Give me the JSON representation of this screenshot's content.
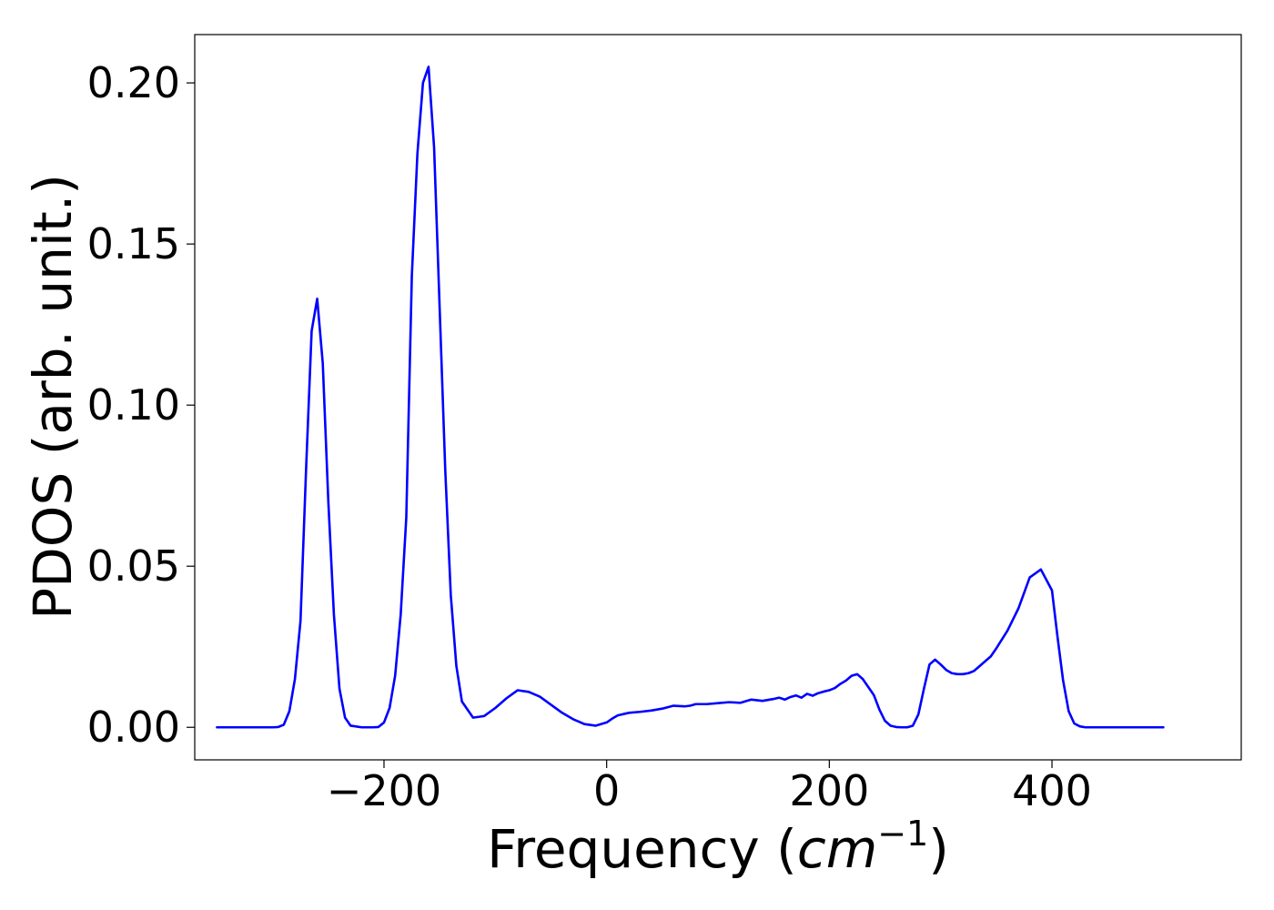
{
  "chart_data": {
    "type": "line",
    "title": "",
    "xlabel_text": "Frequency (",
    "xlabel_math": "cm",
    "xlabel_exponent": "−1",
    "xlabel_close": ")",
    "ylabel": "PDOS (arb. unit.)",
    "xlim": [
      -370,
      570
    ],
    "ylim": [
      -0.0101,
      0.215
    ],
    "xticks": [
      -200,
      0,
      200,
      400
    ],
    "xtick_labels": [
      "−200",
      "0",
      "200",
      "400"
    ],
    "yticks": [
      0.0,
      0.05,
      0.1,
      0.15,
      0.2
    ],
    "ytick_labels": [
      "0.00",
      "0.05",
      "0.10",
      "0.15",
      "0.20"
    ],
    "grid": false,
    "line_color": "#0000ff",
    "series": [
      {
        "x": [
          -350,
          -300,
          -295,
          -290,
          -285,
          -280,
          -275,
          -270,
          -265,
          -260,
          -255,
          -250,
          -245,
          -240,
          -235,
          -230,
          -220,
          -210,
          -205,
          -200,
          -195,
          -190,
          -185,
          -180,
          -175,
          -170,
          -165,
          -160,
          -155,
          -150,
          -145,
          -140,
          -135,
          -130,
          -120,
          -110,
          -100,
          -90,
          -80,
          -70,
          -60,
          -50,
          -40,
          -30,
          -20,
          -10,
          0,
          5,
          10,
          20,
          30,
          40,
          50,
          60,
          70,
          75,
          80,
          90,
          100,
          110,
          120,
          125,
          130,
          140,
          150,
          155,
          160,
          165,
          170,
          175,
          180,
          185,
          190,
          195,
          200,
          205,
          210,
          215,
          220,
          225,
          230,
          240,
          245,
          250,
          255,
          260,
          265,
          270,
          275,
          280,
          285,
          290,
          295,
          300,
          305,
          310,
          315,
          320,
          325,
          330,
          335,
          340,
          345,
          350,
          360,
          370,
          380,
          390,
          400,
          405,
          410,
          415,
          420,
          425,
          430,
          435,
          440,
          445,
          450,
          460,
          480,
          500
        ],
        "y": [
          0.0,
          0.0,
          0.0001,
          0.0008,
          0.005,
          0.015,
          0.033,
          0.08,
          0.123,
          0.133,
          0.113,
          0.07,
          0.035,
          0.012,
          0.003,
          0.0005,
          0.0,
          0.0,
          0.0001,
          0.0015,
          0.006,
          0.016,
          0.035,
          0.065,
          0.14,
          0.178,
          0.2,
          0.205,
          0.18,
          0.13,
          0.08,
          0.041,
          0.019,
          0.008,
          0.003,
          0.0035,
          0.006,
          0.009,
          0.0115,
          0.011,
          0.0095,
          0.007,
          0.0045,
          0.0025,
          0.001,
          0.0005,
          0.0015,
          0.0027,
          0.0037,
          0.0045,
          0.0048,
          0.0052,
          0.0058,
          0.0067,
          0.0065,
          0.0067,
          0.0072,
          0.0072,
          0.0075,
          0.0078,
          0.0076,
          0.0081,
          0.0086,
          0.0082,
          0.0088,
          0.0092,
          0.0086,
          0.0094,
          0.0099,
          0.0092,
          0.0104,
          0.0098,
          0.0106,
          0.0111,
          0.0115,
          0.0122,
          0.0135,
          0.0145,
          0.016,
          0.0165,
          0.015,
          0.01,
          0.0055,
          0.002,
          0.0005,
          0.0001,
          0.0,
          0.0,
          0.0005,
          0.004,
          0.012,
          0.0195,
          0.021,
          0.0195,
          0.0178,
          0.0168,
          0.0165,
          0.0165,
          0.0168,
          0.0175,
          0.019,
          0.0205,
          0.022,
          0.0245,
          0.03,
          0.037,
          0.0465,
          0.049,
          0.0425,
          0.028,
          0.0145,
          0.005,
          0.0012,
          0.0003,
          0.0,
          0.0,
          0.0,
          0.0,
          0.0,
          0.0,
          0.0,
          0.0
        ]
      }
    ]
  }
}
